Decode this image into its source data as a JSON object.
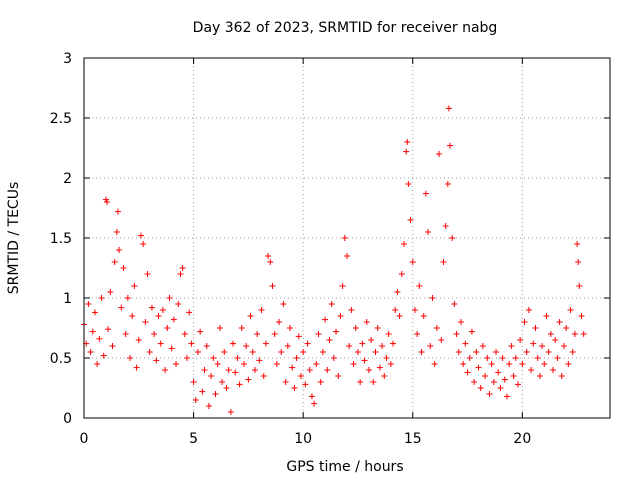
{
  "chart_data": {
    "type": "scatter",
    "title": "Day 362 of 2023, SRMTID for receiver nabg",
    "xlabel": "GPS time / hours",
    "ylabel": "SRMTID / TECUs",
    "xlim": [
      0,
      24
    ],
    "ylim": [
      0,
      3
    ],
    "xticks": [
      0,
      5,
      10,
      15,
      20
    ],
    "xtick_labels": [
      "0",
      "5",
      "10",
      "15",
      "20"
    ],
    "yticks": [
      0,
      0.5,
      1,
      1.5,
      2,
      2.5,
      3
    ],
    "ytick_labels": [
      "0",
      "0.5",
      "1",
      "1.5",
      "2",
      "2.5",
      "3"
    ],
    "grid": true,
    "marker": "+",
    "color": "#ff0000",
    "series": [
      {
        "name": "SRMTID",
        "points": [
          [
            0.0,
            0.78
          ],
          [
            0.1,
            0.62
          ],
          [
            0.2,
            0.95
          ],
          [
            0.3,
            0.55
          ],
          [
            0.4,
            0.72
          ],
          [
            0.5,
            0.88
          ],
          [
            0.6,
            0.45
          ],
          [
            0.7,
            0.66
          ],
          [
            0.8,
            1.0
          ],
          [
            0.9,
            0.52
          ],
          [
            1.0,
            1.82
          ],
          [
            1.05,
            1.8
          ],
          [
            1.1,
            0.74
          ],
          [
            1.2,
            1.05
          ],
          [
            1.3,
            0.6
          ],
          [
            1.4,
            1.3
          ],
          [
            1.5,
            1.55
          ],
          [
            1.55,
            1.72
          ],
          [
            1.6,
            1.4
          ],
          [
            1.7,
            0.92
          ],
          [
            1.8,
            1.25
          ],
          [
            1.9,
            0.7
          ],
          [
            2.0,
            1.0
          ],
          [
            2.1,
            0.5
          ],
          [
            2.2,
            0.85
          ],
          [
            2.3,
            1.1
          ],
          [
            2.4,
            0.42
          ],
          [
            2.5,
            0.65
          ],
          [
            2.6,
            1.52
          ],
          [
            2.7,
            1.45
          ],
          [
            2.8,
            0.8
          ],
          [
            2.9,
            1.2
          ],
          [
            3.0,
            0.55
          ],
          [
            3.1,
            0.92
          ],
          [
            3.2,
            0.7
          ],
          [
            3.3,
            0.48
          ],
          [
            3.4,
            0.85
          ],
          [
            3.5,
            0.62
          ],
          [
            3.6,
            0.9
          ],
          [
            3.7,
            0.4
          ],
          [
            3.8,
            0.75
          ],
          [
            3.9,
            1.0
          ],
          [
            4.0,
            0.58
          ],
          [
            4.1,
            0.82
          ],
          [
            4.2,
            0.45
          ],
          [
            4.3,
            0.95
          ],
          [
            4.4,
            1.2
          ],
          [
            4.5,
            1.25
          ],
          [
            4.6,
            0.7
          ],
          [
            4.7,
            0.5
          ],
          [
            4.8,
            0.88
          ],
          [
            4.9,
            0.62
          ],
          [
            5.0,
            0.3
          ],
          [
            5.1,
            0.15
          ],
          [
            5.2,
            0.55
          ],
          [
            5.3,
            0.72
          ],
          [
            5.4,
            0.22
          ],
          [
            5.5,
            0.4
          ],
          [
            5.6,
            0.6
          ],
          [
            5.7,
            0.1
          ],
          [
            5.8,
            0.35
          ],
          [
            5.9,
            0.5
          ],
          [
            6.0,
            0.2
          ],
          [
            6.1,
            0.45
          ],
          [
            6.2,
            0.75
          ],
          [
            6.3,
            0.3
          ],
          [
            6.4,
            0.55
          ],
          [
            6.5,
            0.25
          ],
          [
            6.6,
            0.4
          ],
          [
            6.7,
            0.05
          ],
          [
            6.8,
            0.62
          ],
          [
            6.9,
            0.38
          ],
          [
            7.0,
            0.5
          ],
          [
            7.1,
            0.28
          ],
          [
            7.2,
            0.75
          ],
          [
            7.3,
            0.45
          ],
          [
            7.4,
            0.6
          ],
          [
            7.5,
            0.32
          ],
          [
            7.6,
            0.85
          ],
          [
            7.7,
            0.55
          ],
          [
            7.8,
            0.4
          ],
          [
            7.9,
            0.7
          ],
          [
            8.0,
            0.48
          ],
          [
            8.1,
            0.9
          ],
          [
            8.2,
            0.35
          ],
          [
            8.3,
            0.62
          ],
          [
            8.4,
            1.35
          ],
          [
            8.5,
            1.3
          ],
          [
            8.6,
            1.1
          ],
          [
            8.7,
            0.7
          ],
          [
            8.8,
            0.45
          ],
          [
            8.9,
            0.8
          ],
          [
            9.0,
            0.55
          ],
          [
            9.1,
            0.95
          ],
          [
            9.2,
            0.3
          ],
          [
            9.3,
            0.6
          ],
          [
            9.4,
            0.75
          ],
          [
            9.5,
            0.42
          ],
          [
            9.6,
            0.25
          ],
          [
            9.7,
            0.5
          ],
          [
            9.8,
            0.68
          ],
          [
            9.9,
            0.35
          ],
          [
            10.0,
            0.55
          ],
          [
            10.1,
            0.28
          ],
          [
            10.2,
            0.62
          ],
          [
            10.3,
            0.4
          ],
          [
            10.4,
            0.18
          ],
          [
            10.5,
            0.12
          ],
          [
            10.6,
            0.45
          ],
          [
            10.7,
            0.7
          ],
          [
            10.8,
            0.3
          ],
          [
            10.9,
            0.55
          ],
          [
            11.0,
            0.82
          ],
          [
            11.1,
            0.4
          ],
          [
            11.2,
            0.65
          ],
          [
            11.3,
            0.95
          ],
          [
            11.4,
            0.5
          ],
          [
            11.5,
            0.72
          ],
          [
            11.6,
            0.35
          ],
          [
            11.7,
            0.85
          ],
          [
            11.8,
            1.1
          ],
          [
            11.9,
            1.5
          ],
          [
            12.0,
            1.35
          ],
          [
            12.1,
            0.6
          ],
          [
            12.2,
            0.9
          ],
          [
            12.3,
            0.45
          ],
          [
            12.4,
            0.75
          ],
          [
            12.5,
            0.55
          ],
          [
            12.6,
            0.3
          ],
          [
            12.7,
            0.62
          ],
          [
            12.8,
            0.48
          ],
          [
            12.9,
            0.8
          ],
          [
            13.0,
            0.4
          ],
          [
            13.1,
            0.65
          ],
          [
            13.2,
            0.3
          ],
          [
            13.3,
            0.55
          ],
          [
            13.4,
            0.75
          ],
          [
            13.5,
            0.42
          ],
          [
            13.6,
            0.6
          ],
          [
            13.7,
            0.35
          ],
          [
            13.8,
            0.5
          ],
          [
            13.9,
            0.7
          ],
          [
            14.0,
            0.45
          ],
          [
            14.1,
            0.62
          ],
          [
            14.2,
            0.9
          ],
          [
            14.3,
            1.05
          ],
          [
            14.4,
            0.85
          ],
          [
            14.5,
            1.2
          ],
          [
            14.6,
            1.45
          ],
          [
            14.7,
            2.22
          ],
          [
            14.75,
            2.3
          ],
          [
            14.8,
            1.95
          ],
          [
            14.9,
            1.65
          ],
          [
            15.0,
            1.3
          ],
          [
            15.1,
            0.9
          ],
          [
            15.2,
            0.7
          ],
          [
            15.3,
            1.1
          ],
          [
            15.4,
            0.55
          ],
          [
            15.5,
            0.85
          ],
          [
            15.6,
            1.87
          ],
          [
            15.7,
            1.55
          ],
          [
            15.8,
            0.6
          ],
          [
            15.9,
            1.0
          ],
          [
            16.0,
            0.45
          ],
          [
            16.1,
            0.75
          ],
          [
            16.2,
            2.2
          ],
          [
            16.3,
            0.65
          ],
          [
            16.4,
            1.3
          ],
          [
            16.5,
            1.6
          ],
          [
            16.6,
            1.95
          ],
          [
            16.65,
            2.58
          ],
          [
            16.7,
            2.27
          ],
          [
            16.8,
            1.5
          ],
          [
            16.9,
            0.95
          ],
          [
            17.0,
            0.7
          ],
          [
            17.1,
            0.55
          ],
          [
            17.2,
            0.8
          ],
          [
            17.3,
            0.45
          ],
          [
            17.4,
            0.62
          ],
          [
            17.5,
            0.38
          ],
          [
            17.6,
            0.5
          ],
          [
            17.7,
            0.72
          ],
          [
            17.8,
            0.3
          ],
          [
            17.9,
            0.55
          ],
          [
            18.0,
            0.42
          ],
          [
            18.1,
            0.25
          ],
          [
            18.2,
            0.6
          ],
          [
            18.3,
            0.35
          ],
          [
            18.4,
            0.5
          ],
          [
            18.5,
            0.2
          ],
          [
            18.6,
            0.45
          ],
          [
            18.7,
            0.3
          ],
          [
            18.8,
            0.55
          ],
          [
            18.9,
            0.38
          ],
          [
            19.0,
            0.25
          ],
          [
            19.1,
            0.5
          ],
          [
            19.2,
            0.32
          ],
          [
            19.3,
            0.18
          ],
          [
            19.4,
            0.45
          ],
          [
            19.5,
            0.6
          ],
          [
            19.6,
            0.35
          ],
          [
            19.7,
            0.5
          ],
          [
            19.8,
            0.28
          ],
          [
            19.9,
            0.65
          ],
          [
            20.0,
            0.45
          ],
          [
            20.1,
            0.8
          ],
          [
            20.2,
            0.55
          ],
          [
            20.3,
            0.9
          ],
          [
            20.4,
            0.4
          ],
          [
            20.5,
            0.62
          ],
          [
            20.6,
            0.75
          ],
          [
            20.7,
            0.5
          ],
          [
            20.8,
            0.35
          ],
          [
            20.9,
            0.6
          ],
          [
            21.0,
            0.45
          ],
          [
            21.1,
            0.85
          ],
          [
            21.2,
            0.55
          ],
          [
            21.3,
            0.7
          ],
          [
            21.4,
            0.4
          ],
          [
            21.5,
            0.65
          ],
          [
            21.6,
            0.5
          ],
          [
            21.7,
            0.8
          ],
          [
            21.8,
            0.35
          ],
          [
            21.9,
            0.6
          ],
          [
            22.0,
            0.75
          ],
          [
            22.1,
            0.45
          ],
          [
            22.2,
            0.9
          ],
          [
            22.3,
            0.55
          ],
          [
            22.4,
            0.7
          ],
          [
            22.5,
            1.45
          ],
          [
            22.55,
            1.3
          ],
          [
            22.6,
            1.1
          ],
          [
            22.7,
            0.85
          ],
          [
            22.8,
            0.7
          ]
        ]
      }
    ]
  }
}
